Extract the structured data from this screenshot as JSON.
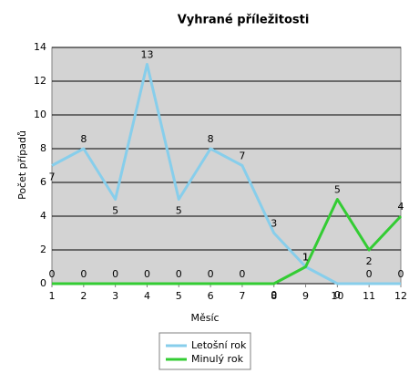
{
  "chart_data": {
    "type": "line",
    "title": "Vyhrané příležitosti",
    "x_label": "Měsíc",
    "y_label": "Počet případů",
    "x": [
      1,
      2,
      3,
      4,
      5,
      6,
      7,
      8,
      9,
      10,
      11,
      12
    ],
    "series": [
      {
        "name": "Letošní rok",
        "color": "#87ceeb",
        "values": [
          7,
          8,
          5,
          13,
          5,
          8,
          7,
          3,
          1,
          0,
          0,
          0
        ]
      },
      {
        "name": "Minulý rok",
        "color": "#33cc33",
        "values": [
          0,
          0,
          0,
          0,
          0,
          0,
          0,
          0,
          1,
          5,
          2,
          4
        ]
      }
    ],
    "xlim": [
      1,
      12
    ],
    "xticks": [
      1,
      2,
      3,
      4,
      5,
      6,
      7,
      8,
      9,
      10,
      11,
      12
    ],
    "ylim": [
      0,
      14
    ],
    "yticks": [
      0,
      2,
      4,
      6,
      8,
      10,
      12,
      14
    ],
    "grid": true
  }
}
